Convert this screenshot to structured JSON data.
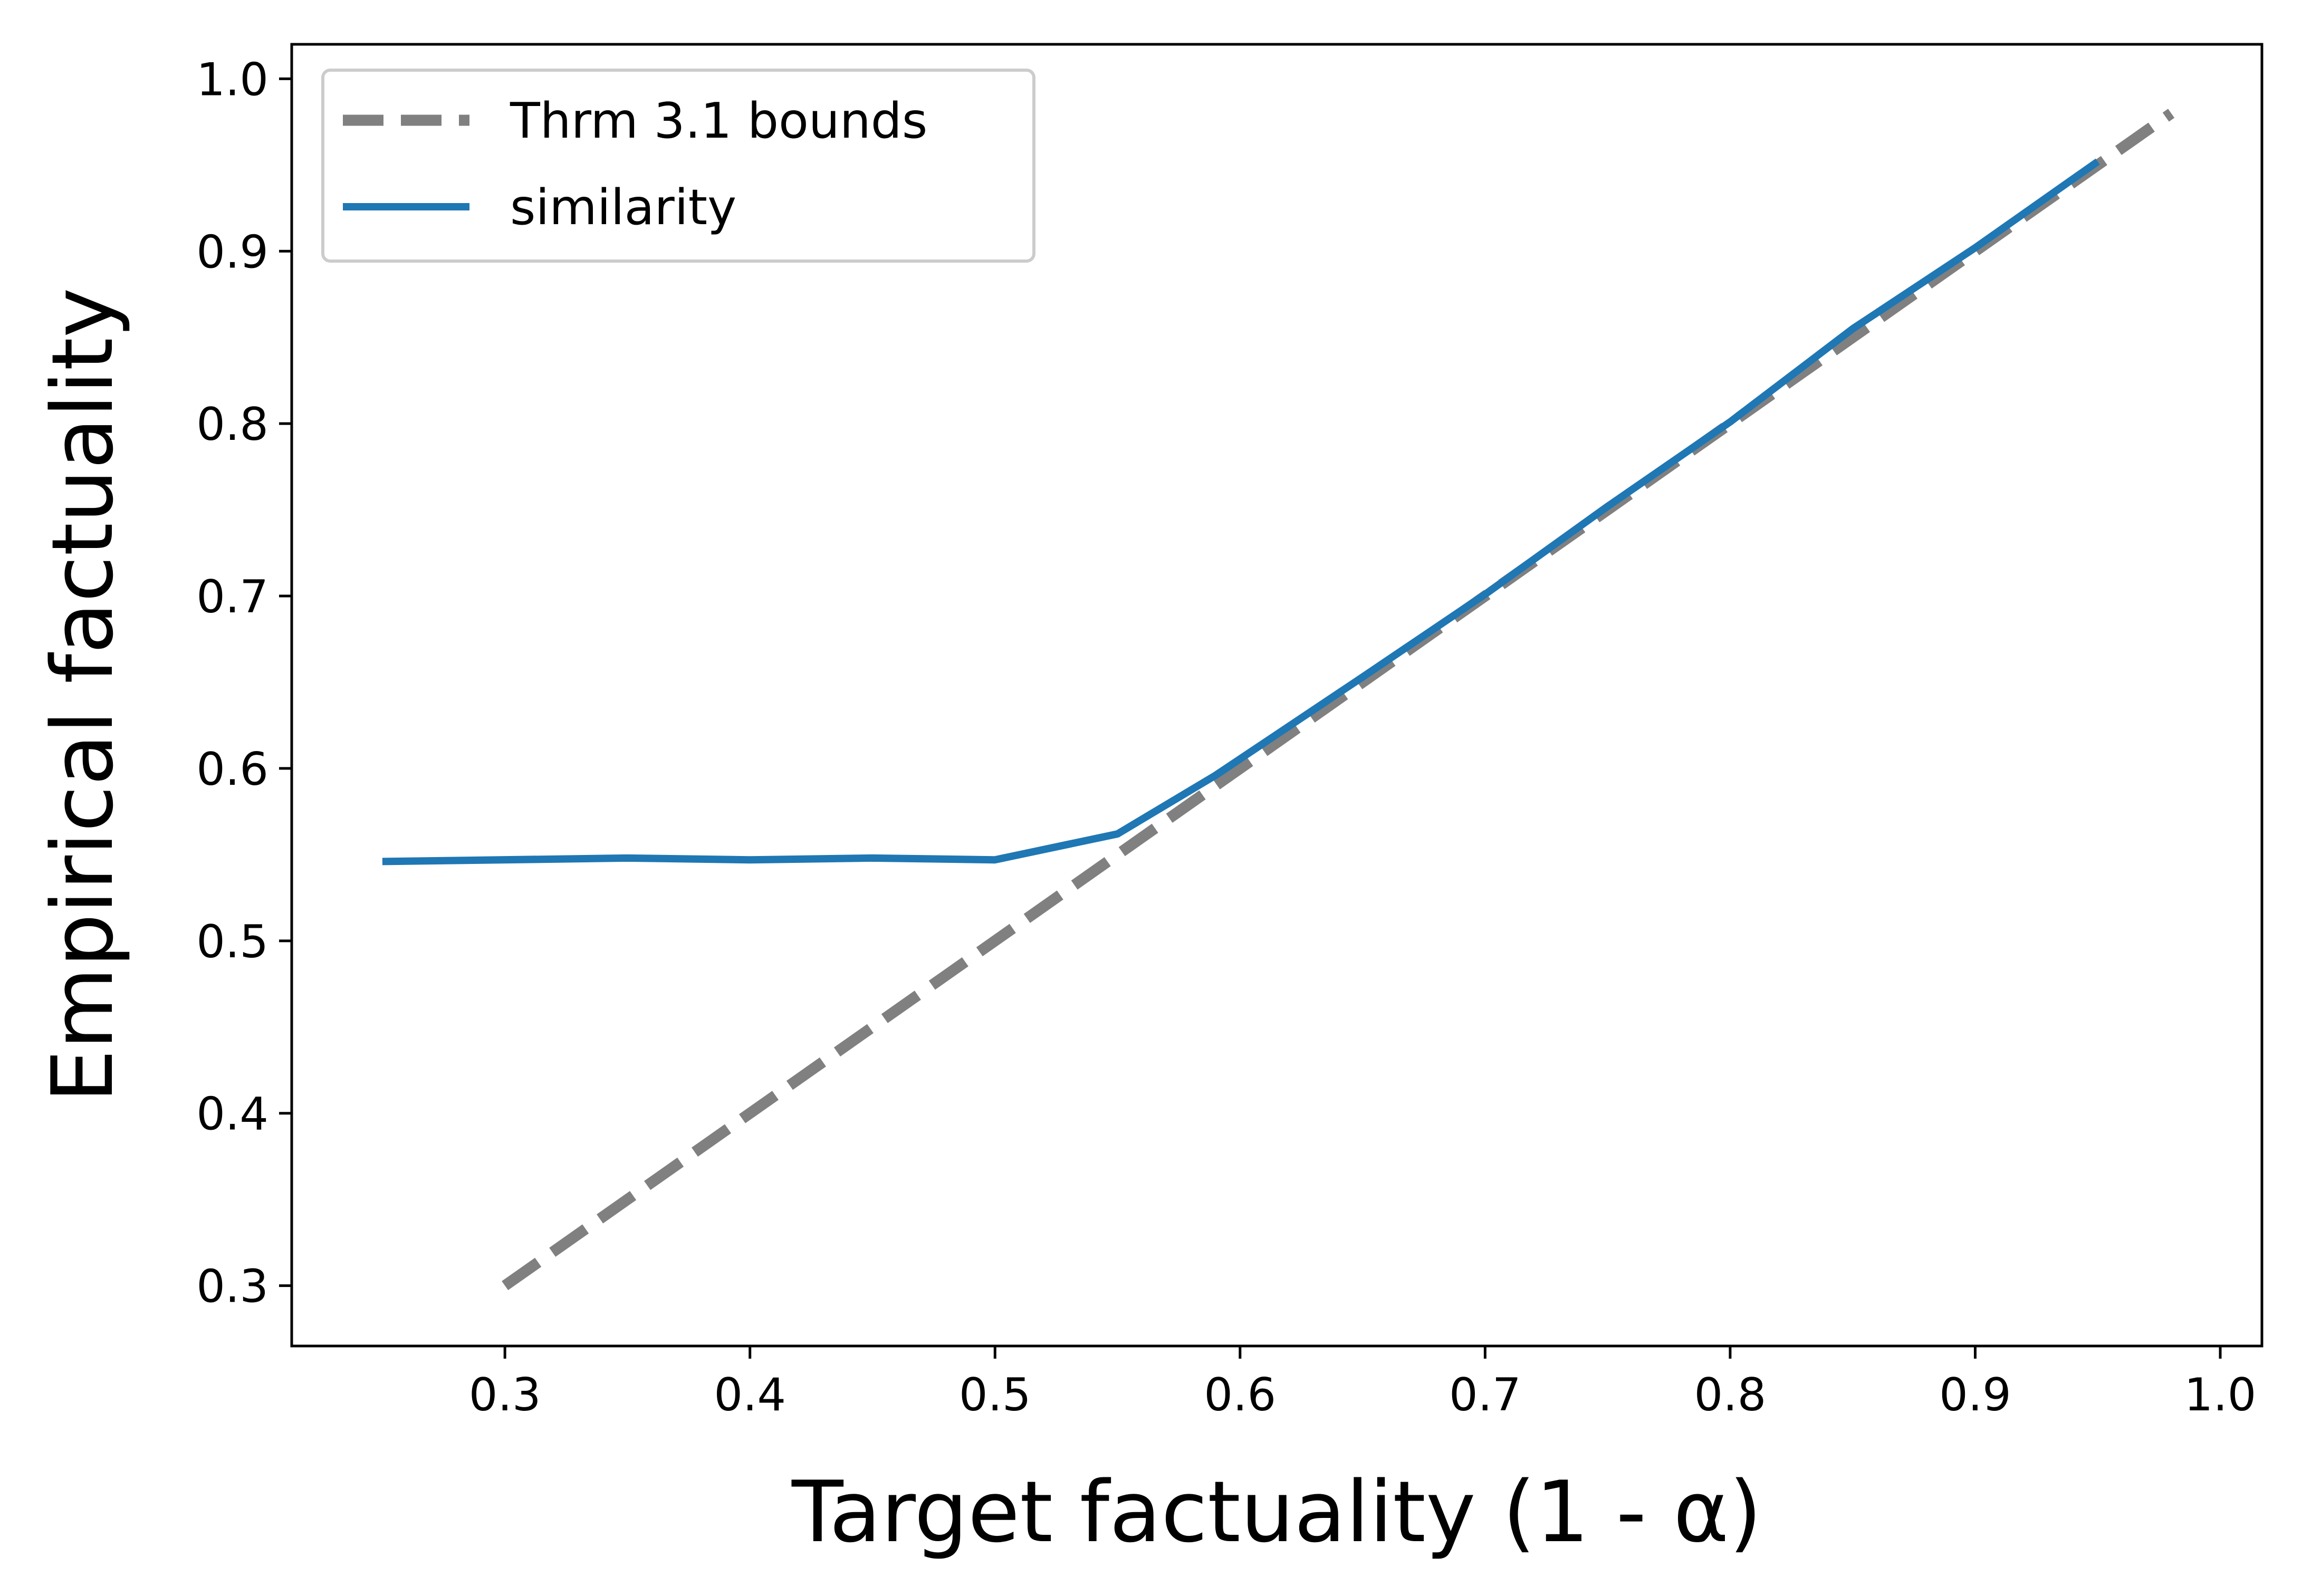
{
  "chart_data": {
    "type": "line",
    "xlabel": "Target factuality (1 - α)",
    "ylabel": "Empirical factuality",
    "xlim": [
      0.213,
      1.017
    ],
    "ylim": [
      0.265,
      1.02
    ],
    "x_ticks": [
      "0.3",
      "0.4",
      "0.5",
      "0.6",
      "0.7",
      "0.8",
      "0.9",
      "1.0"
    ],
    "y_ticks": [
      "0.3",
      "0.4",
      "0.5",
      "0.6",
      "0.7",
      "0.8",
      "0.9",
      "1.0"
    ],
    "grid": false,
    "legend_position": "top-left",
    "series": [
      {
        "name": "Thrm 3.1 bounds",
        "style": "dashed",
        "color": "#808080",
        "x": [
          0.3,
          0.98
        ],
        "y": [
          0.3,
          0.98
        ]
      },
      {
        "name": "similarity",
        "style": "solid",
        "color": "#1f77b4",
        "x": [
          0.25,
          0.35,
          0.4,
          0.45,
          0.5,
          0.55,
          0.59,
          0.65,
          0.7,
          0.75,
          0.8,
          0.85,
          0.9,
          0.95
        ],
        "y": [
          0.546,
          0.548,
          0.547,
          0.548,
          0.547,
          0.562,
          0.596,
          0.653,
          0.701,
          0.752,
          0.801,
          0.855,
          0.902,
          0.952
        ]
      }
    ]
  }
}
